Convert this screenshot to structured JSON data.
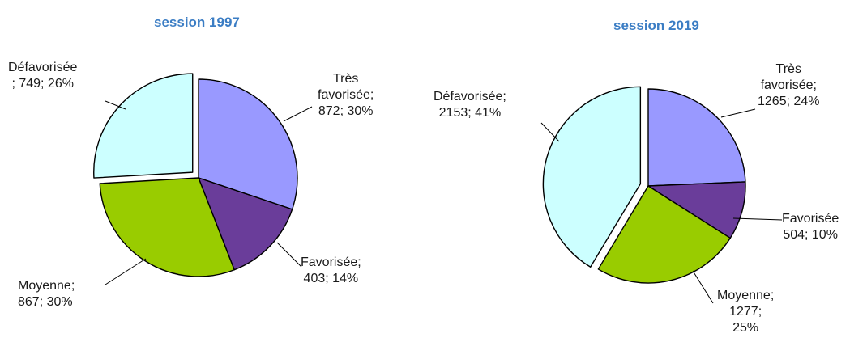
{
  "chart_data": [
    {
      "type": "pie",
      "title": "session 1997",
      "slices": [
        {
          "name": "Très favorisée",
          "value": 872,
          "percent": "30%",
          "color": "#9999ff",
          "label_lines": [
            "Très",
            "favorisée;",
            "872; 30%"
          ]
        },
        {
          "name": "Favorisée",
          "value": 403,
          "percent": "14%",
          "color": "#6a3d9a",
          "label_lines": [
            "Favorisée;",
            "403; 14%"
          ]
        },
        {
          "name": "Moyenne",
          "value": 867,
          "percent": "30%",
          "color": "#99cc00",
          "label_lines": [
            "Moyenne;",
            "867; 30%"
          ]
        },
        {
          "name": "Défavorisée",
          "value": 749,
          "percent": "26%",
          "color": "#ccffff",
          "label_lines": [
            "Défavorisée",
            "; 749; 26%"
          ],
          "exploded": true
        }
      ]
    },
    {
      "type": "pie",
      "title": "session 2019",
      "slices": [
        {
          "name": "Très favorisée",
          "value": 1265,
          "percent": "24%",
          "color": "#9999ff",
          "label_lines": [
            "Très",
            "favorisée;",
            "1265; 24%"
          ]
        },
        {
          "name": "Favorisée",
          "value": 504,
          "percent": "10%",
          "color": "#6a3d9a",
          "label_lines": [
            "Favorisée",
            "504; 10%"
          ]
        },
        {
          "name": "Moyenne",
          "value": 1277,
          "percent": "25%",
          "color": "#99cc00",
          "label_lines": [
            "Moyenne;",
            "1277;",
            "25%"
          ]
        },
        {
          "name": "Défavorisée",
          "value": 2153,
          "percent": "41%",
          "color": "#ccffff",
          "label_lines": [
            "Défavorisée;",
            "2153; 41%"
          ],
          "exploded": true
        }
      ]
    }
  ]
}
